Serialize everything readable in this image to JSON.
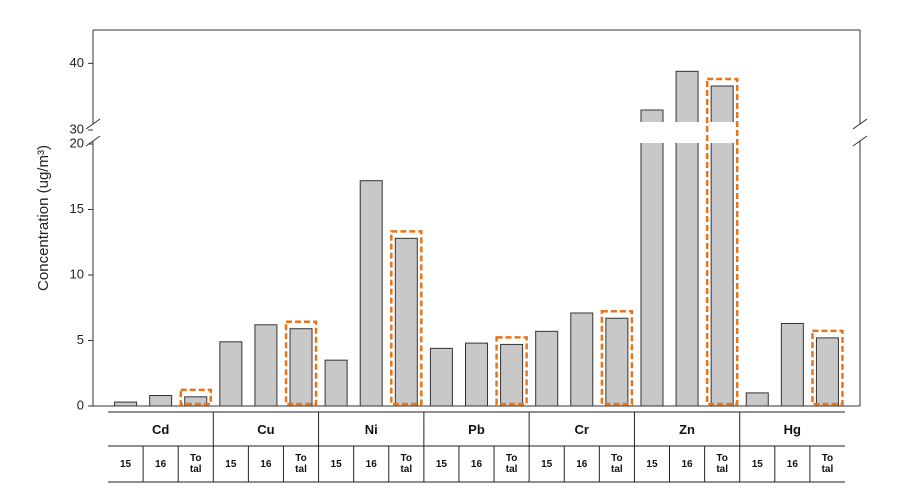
{
  "chart_data": {
    "type": "grouped_bar",
    "y_label": "Concentration (ug/m³)",
    "categories": [
      "Cd",
      "Cu",
      "Ni",
      "Pb",
      "Cr",
      "Zn",
      "Hg"
    ],
    "series": [
      {
        "name": "15",
        "color": "#c8c8c8",
        "values": [
          0.3,
          4.9,
          3.5,
          4.4,
          5.7,
          33,
          1.0
        ]
      },
      {
        "name": "16",
        "color": "#c8c8c8",
        "values": [
          0.8,
          6.2,
          17.2,
          4.8,
          7.1,
          38.8,
          6.3
        ]
      },
      {
        "name": "To tal",
        "color": "#c8c8c8",
        "values": [
          0.7,
          5.9,
          12.8,
          4.7,
          6.7,
          36.6,
          5.2
        ]
      }
    ],
    "highlight_series": "To tal",
    "highlight_color": "#e8751a",
    "ylim": [
      0,
      45
    ],
    "axis_break": [
      20,
      30
    ],
    "yticks": [
      0,
      5,
      10,
      15,
      20,
      30,
      40
    ]
  }
}
